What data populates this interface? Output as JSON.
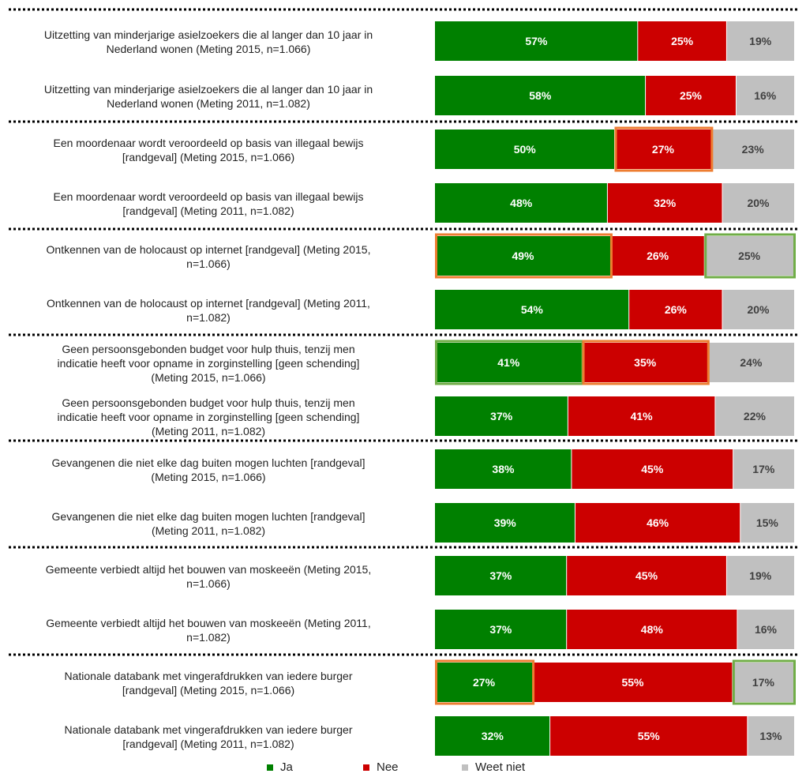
{
  "chart_data": {
    "type": "bar",
    "orientation": "horizontal",
    "stacked": true,
    "normalized": true,
    "categories": [
      "Uitzetting van minderjarige asielzoekers die al langer dan 10 jaar in Nederland wonen (Meting 2015, n=1.066)",
      "Uitzetting van minderjarige asielzoekers die al langer dan 10 jaar in Nederland wonen (Meting 2011, n=1.082)",
      "Een moordenaar wordt veroordeeld op basis van illegaal bewijs [randgeval] (Meting 2015, n=1.066)",
      "Een moordenaar wordt veroordeeld op basis van illegaal bewijs [randgeval] (Meting 2011, n=1.082)",
      "Ontkennen van de holocaust op internet [randgeval] (Meting 2015, n=1.066)",
      "Ontkennen van de holocaust op internet [randgeval] (Meting 2011, n=1.082)",
      "Geen persoonsgebonden budget voor hulp thuis, tenzij men indicatie heeft voor opname in zorginstelling [geen schending] (Meting 2015, n=1.066)",
      "Geen persoonsgebonden budget voor hulp thuis, tenzij men indicatie heeft voor opname in zorginstelling [geen schending] (Meting 2011, n=1.082)",
      "Gevangenen die niet elke dag buiten mogen luchten [randgeval] (Meting 2015, n=1.066)",
      "Gevangenen die niet elke dag buiten mogen luchten [randgeval] (Meting 2011, n=1.082)",
      "Gemeente verbiedt altijd het bouwen van moskeeën (Meting 2015, n=1.066)",
      "Gemeente verbiedt altijd het bouwen van moskeeën (Meting 2011, n=1.082)",
      "Nationale databank met vingerafdrukken van iedere burger [randgeval] (Meting 2015, n=1.066)",
      "Nationale databank met vingerafdrukken van iedere burger [randgeval] (Meting 2011, n=1.082)"
    ],
    "series": [
      {
        "name": "Ja",
        "color": "#008000",
        "values": [
          57,
          58,
          50,
          48,
          49,
          54,
          41,
          37,
          38,
          39,
          37,
          37,
          27,
          32
        ]
      },
      {
        "name": "Nee",
        "color": "#cc0000",
        "values": [
          25,
          25,
          27,
          32,
          26,
          26,
          35,
          41,
          45,
          46,
          45,
          48,
          55,
          55
        ]
      },
      {
        "name": "Weet niet",
        "color": "#c0c0c0",
        "values": [
          19,
          16,
          23,
          20,
          25,
          20,
          24,
          22,
          17,
          15,
          19,
          16,
          17,
          13
        ]
      }
    ],
    "highlights": [
      {
        "row": 2,
        "series": 1,
        "color": "#ed7d31"
      },
      {
        "row": 4,
        "series": 0,
        "color": "#ed7d31"
      },
      {
        "row": 4,
        "series": 2,
        "color": "#70ad47"
      },
      {
        "row": 6,
        "series": 0,
        "color": "#70ad47"
      },
      {
        "row": 6,
        "series": 1,
        "color": "#ed7d31"
      },
      {
        "row": 12,
        "series": 0,
        "color": "#ed7d31"
      },
      {
        "row": 12,
        "series": 2,
        "color": "#70ad47"
      }
    ],
    "legend_position": "bottom",
    "grid": false
  },
  "labels": [
    [
      "Uitzetting van minderjarige asielzoekers die al langer dan 10 jaar in",
      "Nederland wonen (Meting 2015, n=1.066)"
    ],
    [
      "Uitzetting van minderjarige asielzoekers die al langer dan 10 jaar in",
      "Nederland wonen (Meting 2011, n=1.082)"
    ],
    [
      "Een moordenaar wordt veroordeeld op basis van illegaal bewijs",
      "[randgeval] (Meting 2015, n=1.066)"
    ],
    [
      "Een moordenaar wordt veroordeeld op basis van illegaal bewijs",
      "[randgeval] (Meting 2011, n=1.082)"
    ],
    [
      "Ontkennen van de holocaust op internet [randgeval] (Meting 2015,",
      "n=1.066)"
    ],
    [
      "Ontkennen van de holocaust op internet [randgeval] (Meting 2011,",
      "n=1.082)"
    ],
    [
      "Geen persoonsgebonden budget voor hulp thuis, tenzij men",
      "indicatie heeft voor opname in zorginstelling [geen schending]",
      "(Meting 2015, n=1.066)"
    ],
    [
      "Geen persoonsgebonden budget voor hulp thuis, tenzij men",
      "indicatie heeft voor opname in zorginstelling [geen schending]",
      "(Meting 2011, n=1.082)"
    ],
    [
      "Gevangenen die niet elke dag buiten mogen luchten [randgeval]",
      "(Meting 2015, n=1.066)"
    ],
    [
      "Gevangenen die niet elke dag buiten mogen luchten [randgeval]",
      "(Meting 2011, n=1.082)"
    ],
    [
      "Gemeente verbiedt altijd het bouwen van moskeeën (Meting 2015,",
      "n=1.066)"
    ],
    [
      "Gemeente verbiedt altijd het bouwen van moskeeën (Meting 2011,",
      "n=1.082)"
    ],
    [
      "Nationale databank met vingerafdrukken van iedere burger",
      "[randgeval] (Meting 2015, n=1.066)"
    ],
    [
      "Nationale databank met vingerafdrukken van iedere burger",
      "[randgeval] (Meting 2011, n=1.082)"
    ]
  ]
}
